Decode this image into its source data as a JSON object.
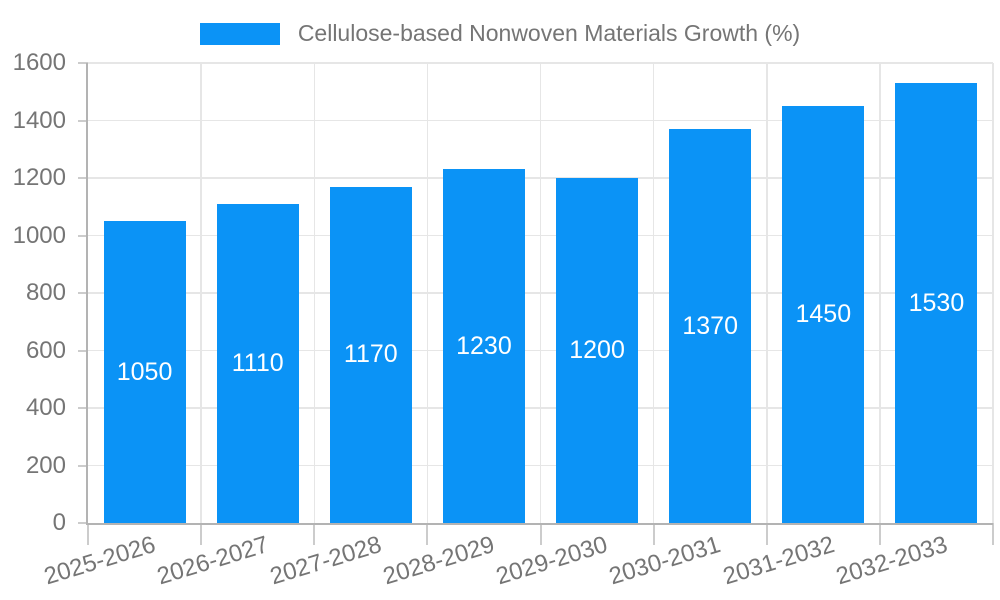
{
  "chart_data": {
    "type": "bar",
    "title": "Cellulose-based Nonwoven Materials Growth (%)",
    "series_name": "Cellulose-based Nonwoven Materials Growth (%)",
    "categories": [
      "2025-2026",
      "2026-2027",
      "2027-2028",
      "2028-2029",
      "2029-2030",
      "2030-2031",
      "2031-2032",
      "2032-2033"
    ],
    "values": [
      1050,
      1110,
      1170,
      1230,
      1200,
      1370,
      1450,
      1530
    ],
    "xlabel": "",
    "ylabel": "",
    "ylim": [
      0,
      1600
    ],
    "ytick_step": 200,
    "yticks": [
      0,
      200,
      400,
      600,
      800,
      1000,
      1200,
      1400,
      1600
    ],
    "grid": true,
    "legend_position": "top-center",
    "data_labels": "inside-center-white",
    "x_label_rotation_deg": -17,
    "colors": {
      "bar": "#0b93f6",
      "grid": "#e6e6e6",
      "axis": "#b3b3b3",
      "tick": "#cccccc",
      "text": "#757575",
      "data_label": "#ffffff"
    }
  }
}
